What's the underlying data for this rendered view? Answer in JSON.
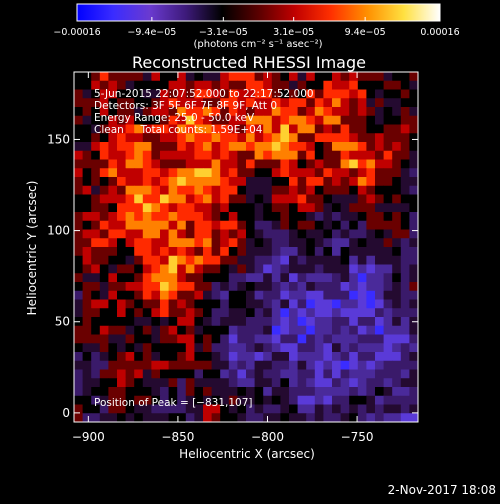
{
  "chart_data": {
    "type": "heatmap",
    "title": "Reconstructed RHESSI Image",
    "xlabel": "Heliocentric X (arcsec)",
    "ylabel": "Heliocentric Y (arcsec)",
    "xlim": [
      -908,
      -716
    ],
    "ylim": [
      -5,
      187
    ],
    "x_ticks": [
      {
        "value": -900,
        "label": "−900"
      },
      {
        "value": -850,
        "label": "−850"
      },
      {
        "value": -800,
        "label": "−800"
      },
      {
        "value": -750,
        "label": "−750"
      }
    ],
    "y_ticks": [
      {
        "value": 0,
        "label": "0"
      },
      {
        "value": 50,
        "label": "50"
      },
      {
        "value": 100,
        "label": "100"
      },
      {
        "value": 150,
        "label": "150"
      }
    ],
    "grid": false,
    "colormap": [
      "#0000ff",
      "#3a2cff",
      "#6a3ad0",
      "#3d1a7a",
      "#000000",
      "#5a0000",
      "#c00000",
      "#ff3000",
      "#ff9000",
      "#ffe040",
      "#ffffff"
    ],
    "colorbar": {
      "min": -0.00016,
      "max": 0.00016,
      "ticks": [
        {
          "value": -0.00016,
          "label": "−0.00016"
        },
        {
          "value": -9.4e-05,
          "label": "−9.4e−05"
        },
        {
          "value": -3.1e-05,
          "label": "−3.1e−05"
        },
        {
          "value": 3.1e-05,
          "label": "3.1e−05"
        },
        {
          "value": 9.4e-05,
          "label": "9.4e−05"
        },
        {
          "value": 0.00016,
          "label": "0.00016"
        }
      ],
      "units": "(photons cm⁻² s⁻¹ asec⁻²)"
    },
    "annotations": [
      "5-Jun-2015 22:07:52.000 to 22:17:52.000",
      "Detectors: 3F 5F 6F 7F 8F 9F, Att 0",
      "Energy Range: 25.0 - 50.0 keV",
      "Clean     Total counts: 1.59E+04"
    ],
    "peak_label": "Position of Peak = [−831,107]",
    "peak_position": [
      -831,
      107
    ]
  },
  "footer": {
    "date_stamp": "2-Nov-2017 18:08"
  }
}
